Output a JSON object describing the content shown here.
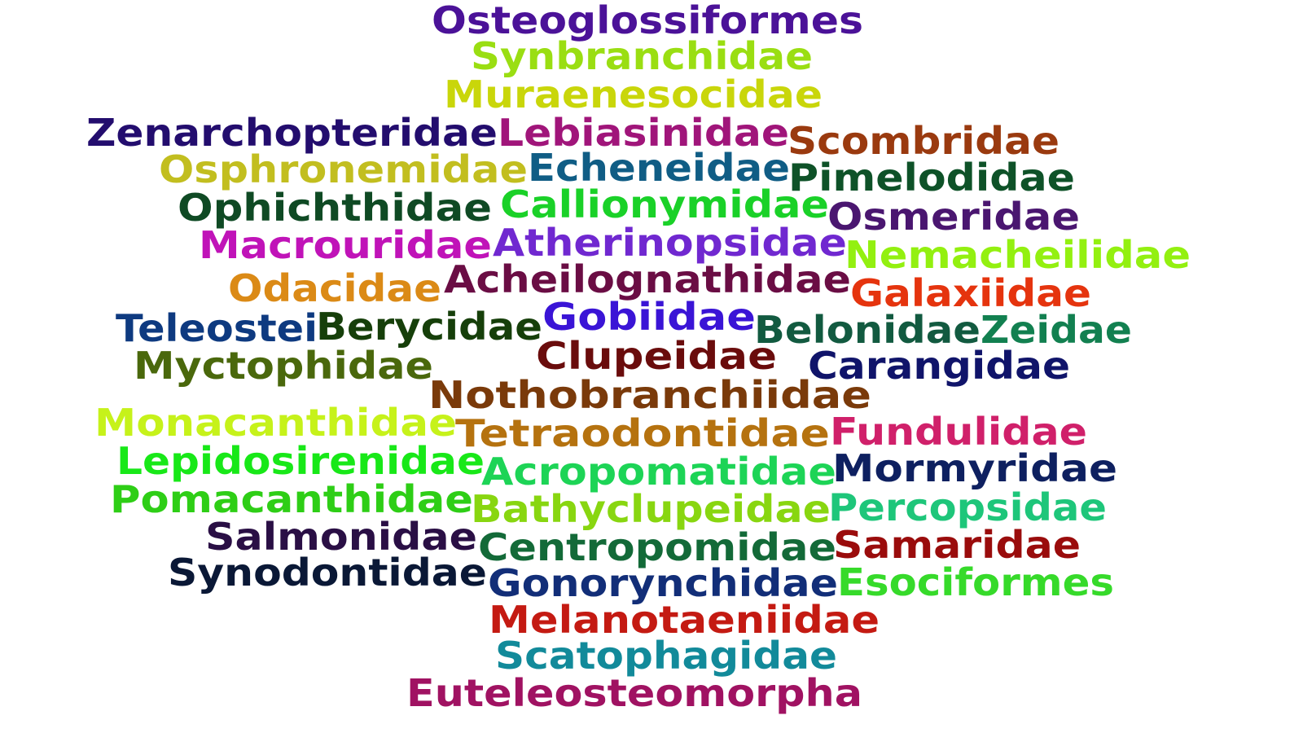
{
  "words": [
    {
      "text": "Osteoglossiformes",
      "color": "#4B1298"
    },
    {
      "text": "Synbranchidae",
      "color": "#9ADE12"
    },
    {
      "text": "Muraenesocidae",
      "color": "#C9D60A"
    },
    {
      "text": "Zenarchopteridae",
      "color": "#230D6E"
    },
    {
      "text": "Lebiasinidae",
      "color": "#A0157A"
    },
    {
      "text": "Scombridae",
      "color": "#9A3A0F"
    },
    {
      "text": "Osphronemidae",
      "color": "#C2BE1F"
    },
    {
      "text": "Echeneidae",
      "color": "#105D85"
    },
    {
      "text": "Pimelodidae",
      "color": "#0E5228"
    },
    {
      "text": "Ophichthidae",
      "color": "#0F4A24"
    },
    {
      "text": "Callionymidae",
      "color": "#1AD128"
    },
    {
      "text": "Osmeridae",
      "color": "#4A1670"
    },
    {
      "text": "Macrouridae",
      "color": "#C013B8"
    },
    {
      "text": "Atherinopsidae",
      "color": "#7028D0"
    },
    {
      "text": "Nemacheilidae",
      "color": "#93F010"
    },
    {
      "text": "Odacidae",
      "color": "#DB8A16"
    },
    {
      "text": "Acheilognathidae",
      "color": "#6A0D44"
    },
    {
      "text": "Galaxiidae",
      "color": "#E5340E"
    },
    {
      "text": "Teleostei",
      "color": "#0E3A80"
    },
    {
      "text": "Berycidae",
      "color": "#163F0A"
    },
    {
      "text": "Gobiidae",
      "color": "#3A14D6"
    },
    {
      "text": "Belonidae",
      "color": "#125A40"
    },
    {
      "text": "Zeidae",
      "color": "#128050"
    },
    {
      "text": "Myctophidae",
      "color": "#4A680C"
    },
    {
      "text": "Clupeidae",
      "color": "#6A0C0C"
    },
    {
      "text": "Carangidae",
      "color": "#10146A"
    },
    {
      "text": "Nothobranchiidae",
      "color": "#7A3A0A"
    },
    {
      "text": "Monacanthidae",
      "color": "#C6F21A"
    },
    {
      "text": "Tetraodontidae",
      "color": "#B5720F"
    },
    {
      "text": "Fundulidae",
      "color": "#D0206A"
    },
    {
      "text": "Lepidosirenidae",
      "color": "#18E818"
    },
    {
      "text": "Acropomatidae",
      "color": "#1DD456"
    },
    {
      "text": "Mormyridae",
      "color": "#0E2060"
    },
    {
      "text": "Pomacanthidae",
      "color": "#2ECE16"
    },
    {
      "text": "Bathyclupeidae",
      "color": "#88D610"
    },
    {
      "text": "Percopsidae",
      "color": "#1EC67A"
    },
    {
      "text": "Salmonidae",
      "color": "#2A0F45"
    },
    {
      "text": "Centropomidae",
      "color": "#136A38"
    },
    {
      "text": "Samaridae",
      "color": "#9A0C0C"
    },
    {
      "text": "Synodontidae",
      "color": "#0A1836"
    },
    {
      "text": "Gonorynchidae",
      "color": "#122E78"
    },
    {
      "text": "Esociformes",
      "color": "#36DA2A"
    },
    {
      "text": "Melanotaeniidae",
      "color": "#C41A12"
    },
    {
      "text": "Scatophagidae",
      "color": "#128A9A"
    },
    {
      "text": "Euteleosteomorpha",
      "color": "#A01262"
    }
  ]
}
